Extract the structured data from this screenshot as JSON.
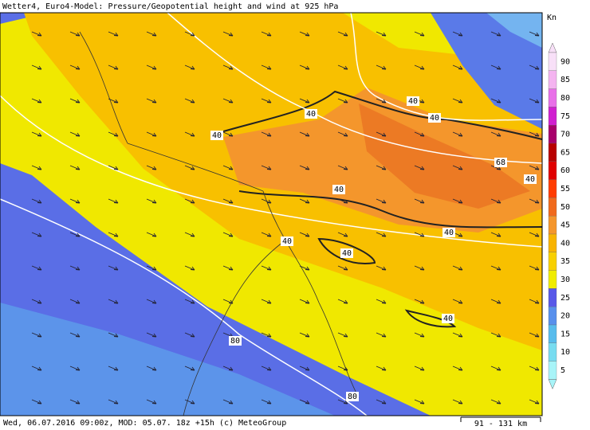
{
  "header": {
    "title": "Wetter4, Euro4-Model: Pressure/Geopotential height and wind at 925 hPa"
  },
  "legend": {
    "unit": "Kn",
    "items": [
      {
        "label": "90",
        "color": "#f8e0f8"
      },
      {
        "label": "85",
        "color": "#f4b4f0"
      },
      {
        "label": "80",
        "color": "#e870e8"
      },
      {
        "label": "75",
        "color": "#d020d0"
      },
      {
        "label": "70",
        "color": "#a8006c"
      },
      {
        "label": "65",
        "color": "#b80000"
      },
      {
        "label": "60",
        "color": "#e00000"
      },
      {
        "label": "55",
        "color": "#ff3c00"
      },
      {
        "label": "50",
        "color": "#f06a1c"
      },
      {
        "label": "45",
        "color": "#f4962c"
      },
      {
        "label": "40",
        "color": "#f8b400"
      },
      {
        "label": "35",
        "color": "#f8d000"
      },
      {
        "label": "30",
        "color": "#f0ec00"
      },
      {
        "label": "25",
        "color": "#5858e8"
      },
      {
        "label": "20",
        "color": "#5890ec"
      },
      {
        "label": "15",
        "color": "#58bcec"
      },
      {
        "label": "10",
        "color": "#78dcf0"
      },
      {
        "label": "5",
        "color": "#a8f4f8"
      }
    ]
  },
  "map": {
    "contour_labels": [
      {
        "label": "40"
      },
      {
        "label": "40"
      },
      {
        "label": "40"
      },
      {
        "label": "40"
      },
      {
        "label": "40"
      },
      {
        "label": "40"
      },
      {
        "label": "40"
      },
      {
        "label": "40"
      },
      {
        "label": "40"
      },
      {
        "label": "40"
      },
      {
        "label": "68"
      },
      {
        "label": "80"
      },
      {
        "label": "80"
      }
    ]
  },
  "footer": {
    "info": "Wed, 06.07.2016 09:00z, MOD: 05.07. 18z +15h (c) MeteoGroup",
    "scale": "91 - 131 km"
  }
}
